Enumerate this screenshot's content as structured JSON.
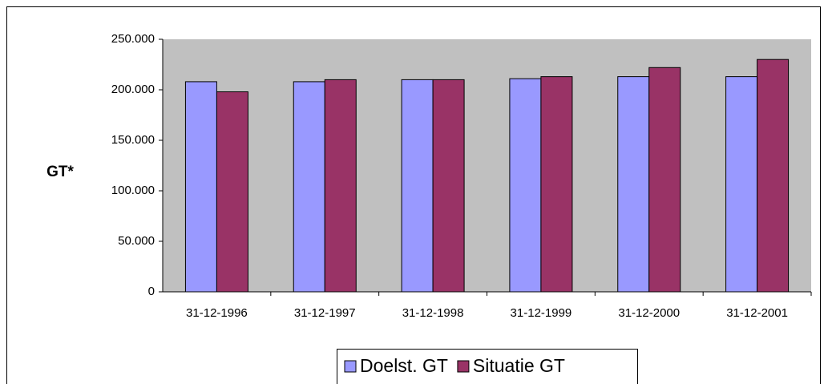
{
  "chart_data": {
    "type": "bar",
    "y_label": "GT*",
    "categories": [
      "31-12-1996",
      "31-12-1997",
      "31-12-1998",
      "31-12-1999",
      "31-12-2000",
      "31-12-2001"
    ],
    "series": [
      {
        "name": "Doelst. GT",
        "color": "#9999ff",
        "values": [
          208000,
          208000,
          210000,
          211000,
          213000,
          213000
        ]
      },
      {
        "name": "Situatie GT",
        "color": "#993366",
        "values": [
          198000,
          210000,
          210000,
          213000,
          222000,
          230000
        ]
      }
    ],
    "ylim": [
      0,
      250000
    ],
    "yticks": [
      0,
      {
        "value": 50000,
        "label": "50.000"
      },
      {
        "value": 100000,
        "label": "100.000"
      },
      {
        "value": 150000,
        "label": "150.000"
      },
      {
        "value": 200000,
        "label": "200.000"
      },
      {
        "value": 250000,
        "label": "250.000"
      }
    ],
    "plot_background": "#c0c0c0"
  }
}
